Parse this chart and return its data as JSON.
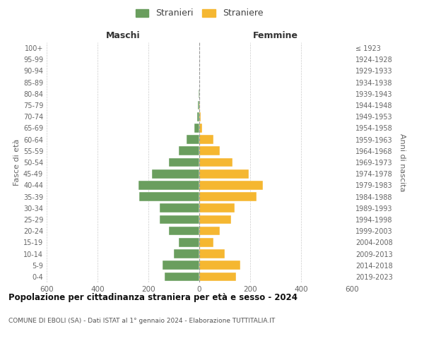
{
  "age_groups": [
    "0-4",
    "5-9",
    "10-14",
    "15-19",
    "20-24",
    "25-29",
    "30-34",
    "35-39",
    "40-44",
    "45-49",
    "50-54",
    "55-59",
    "60-64",
    "65-69",
    "70-74",
    "75-79",
    "80-84",
    "85-89",
    "90-94",
    "95-99",
    "100+"
  ],
  "birth_years": [
    "2019-2023",
    "2014-2018",
    "2009-2013",
    "2004-2008",
    "1999-2003",
    "1994-1998",
    "1989-1993",
    "1984-1988",
    "1979-1983",
    "1974-1978",
    "1969-1973",
    "1964-1968",
    "1959-1963",
    "1954-1958",
    "1949-1953",
    "1944-1948",
    "1939-1943",
    "1934-1938",
    "1929-1933",
    "1924-1928",
    "≤ 1923"
  ],
  "maschi": [
    135,
    145,
    100,
    80,
    120,
    155,
    155,
    235,
    240,
    185,
    120,
    80,
    50,
    20,
    8,
    5,
    2,
    0,
    0,
    0,
    0
  ],
  "femmine": [
    145,
    160,
    100,
    55,
    80,
    125,
    140,
    225,
    250,
    195,
    130,
    80,
    55,
    12,
    5,
    3,
    0,
    0,
    0,
    0,
    0
  ],
  "maschi_color": "#6a9e5e",
  "femmine_color": "#f5b731",
  "title": "Popolazione per cittadinanza straniera per età e sesso - 2024",
  "subtitle": "COMUNE DI EBOLI (SA) - Dati ISTAT al 1° gennaio 2024 - Elaborazione TUTTITALIA.IT",
  "xlabel_left": "Maschi",
  "xlabel_right": "Femmine",
  "ylabel_left": "Fasce di età",
  "ylabel_right": "Anni di nascita",
  "legend_maschi": "Stranieri",
  "legend_femmine": "Straniere",
  "xlim": 600,
  "background_color": "#ffffff",
  "grid_color": "#cccccc"
}
